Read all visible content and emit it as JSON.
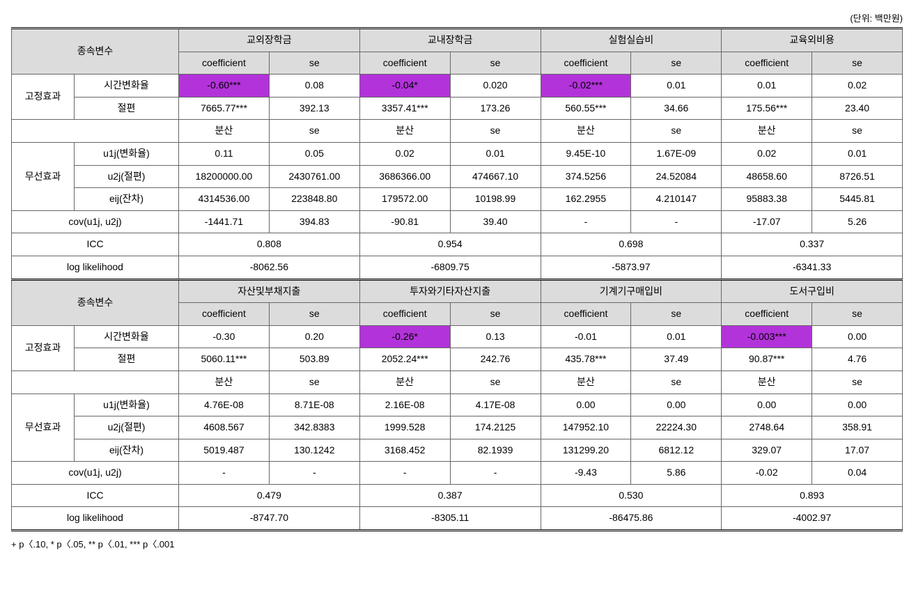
{
  "unit_label": "(단위: 백만원)",
  "footnote": "+ p〈.10,  * p〈.05,  ** p〈.01,  *** p〈.001",
  "labels": {
    "dv": "종속변수",
    "coef": "coefficient",
    "se": "se",
    "var": "분산",
    "fixed": "고정효과",
    "random": "무선효과",
    "time_rate": "시간변화율",
    "intercept": "절편",
    "u1j": "u1j(변화율)",
    "u2j": "u2j(절편)",
    "eij": "eij(잔차)",
    "cov": "cov(u1j, u2j)",
    "icc": "ICC",
    "ll": "log likelihood"
  },
  "t1": {
    "groups": [
      "교외장학금",
      "교내장학금",
      "실험실습비",
      "교육외비용"
    ],
    "time_rate": [
      [
        "-0.60***",
        true
      ],
      [
        "0.08",
        false
      ],
      [
        "-0.04*",
        true
      ],
      [
        "0.020",
        false
      ],
      [
        "-0.02***",
        true
      ],
      [
        "0.01",
        false
      ],
      [
        "0.01",
        false
      ],
      [
        "0.02",
        false
      ]
    ],
    "intercept": [
      [
        "7665.77***",
        false
      ],
      [
        "392.13",
        false
      ],
      [
        "3357.41***",
        false
      ],
      [
        "173.26",
        false
      ],
      [
        "560.55***",
        false
      ],
      [
        "34.66",
        false
      ],
      [
        "175.56***",
        false
      ],
      [
        "23.40",
        false
      ]
    ],
    "u1j": [
      "0.11",
      "0.05",
      "0.02",
      "0.01",
      "9.45E-10",
      "1.67E-09",
      "0.02",
      "0.01"
    ],
    "u2j": [
      "18200000.00",
      "2430761.00",
      "3686366.00",
      "474667.10",
      "374.5256",
      "24.52084",
      "48658.60",
      "8726.51"
    ],
    "eij": [
      "4314536.00",
      "223848.80",
      "179572.00",
      "10198.99",
      "162.2955",
      "4.210147",
      "95883.38",
      "5445.81"
    ],
    "cov": [
      "-1441.71",
      "394.83",
      "-90.81",
      "39.40",
      "-",
      "-",
      "-17.07",
      "5.26"
    ],
    "icc": [
      "0.808",
      "0.954",
      "0.698",
      "0.337"
    ],
    "ll": [
      "-8062.56",
      "-6809.75",
      "-5873.97",
      "-6341.33"
    ]
  },
  "t2": {
    "groups": [
      "자산및부채지출",
      "투자와기타자산지출",
      "기계기구매입비",
      "도서구입비"
    ],
    "time_rate": [
      [
        "-0.30",
        false
      ],
      [
        "0.20",
        false
      ],
      [
        "-0.26*",
        true
      ],
      [
        "0.13",
        false
      ],
      [
        "-0.01",
        false
      ],
      [
        "0.01",
        false
      ],
      [
        "-0.003***",
        true
      ],
      [
        "0.00",
        false
      ]
    ],
    "intercept": [
      [
        "5060.11***",
        false
      ],
      [
        "503.89",
        false
      ],
      [
        "2052.24***",
        false
      ],
      [
        "242.76",
        false
      ],
      [
        "435.78***",
        false
      ],
      [
        "37.49",
        false
      ],
      [
        "90.87***",
        false
      ],
      [
        "4.76",
        false
      ]
    ],
    "u1j": [
      "4.76E-08",
      "8.71E-08",
      "2.16E-08",
      "4.17E-08",
      "0.00",
      "0.00",
      "0.00",
      "0.00"
    ],
    "u2j": [
      "4608.567",
      "342.8383",
      "1999.528",
      "174.2125",
      "147952.10",
      "22224.30",
      "2748.64",
      "358.91"
    ],
    "eij": [
      "5019.487",
      "130.1242",
      "3168.452",
      "82.1939",
      "131299.20",
      "6812.12",
      "329.07",
      "17.07"
    ],
    "cov": [
      "-",
      "-",
      "-",
      "-",
      "-9.43",
      "5.86",
      "-0.02",
      "0.04"
    ],
    "icc": [
      "0.479",
      "0.387",
      "0.530",
      "0.893"
    ],
    "ll": [
      "-8747.70",
      "-8305.11",
      "-86475.86",
      "-4002.97"
    ]
  }
}
